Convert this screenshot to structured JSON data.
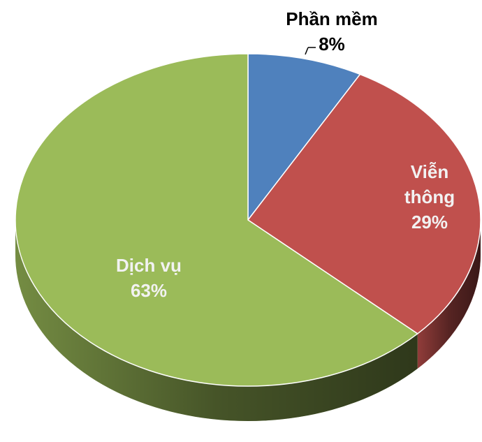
{
  "chart_data": {
    "type": "pie",
    "categories": [
      "Phần mềm",
      "Viễn thông",
      "Dịch vụ"
    ],
    "values": [
      8,
      29,
      63
    ],
    "value_labels": [
      "8%",
      "29%",
      "63%"
    ],
    "colors": [
      "#4f81bd",
      "#c0504d",
      "#9bbb59"
    ]
  }
}
